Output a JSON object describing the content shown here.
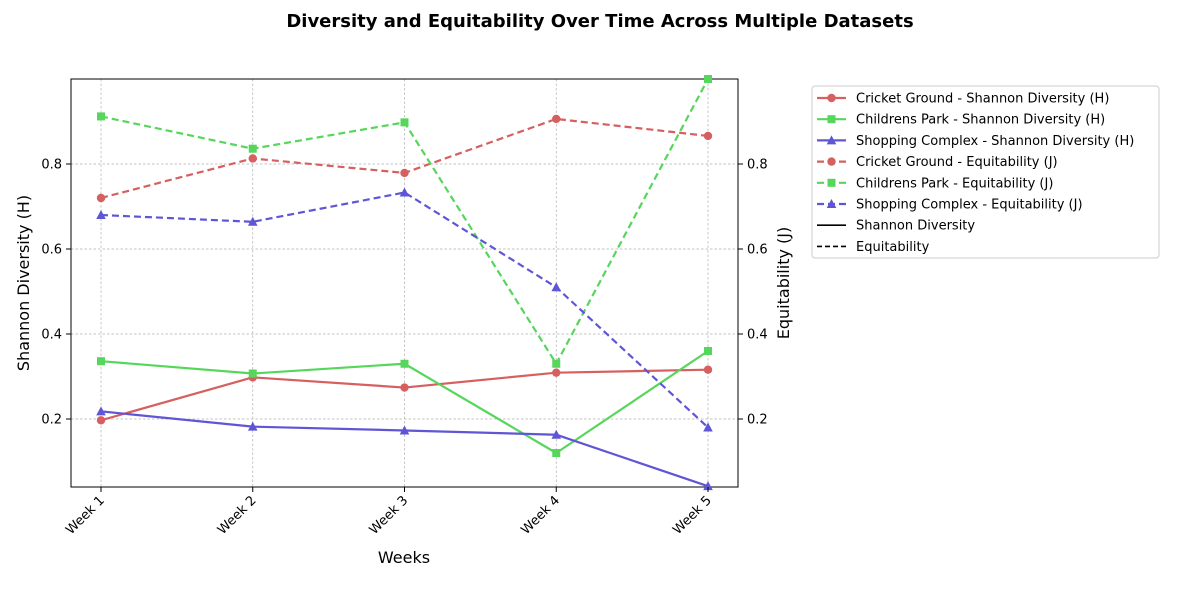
{
  "chart_data": {
    "type": "line",
    "title": "Diversity and Equitability Over Time Across Multiple Datasets",
    "xlabel": "Weeks",
    "ylabel_left": "Shannon Diversity (H)",
    "ylabel_right": "Equitability (J)",
    "categories": [
      "Week 1",
      "Week 2",
      "Week 3",
      "Week 4",
      "Week 5"
    ],
    "ylim_left": [
      0.04,
      1.0
    ],
    "ylim_right": [
      0.04,
      1.0
    ],
    "yticks_left": [
      "0.2",
      "0.4",
      "0.6",
      "0.8"
    ],
    "yticks_right": [
      "0.2",
      "0.4",
      "0.6",
      "0.8"
    ],
    "grid": true,
    "legend_placement": "outside-upper-right",
    "series": [
      {
        "name": "Cricket Ground - Shannon Diversity (H)",
        "axis": "left",
        "color": "#d65f5f",
        "marker": "circle",
        "dash": "solid",
        "values": [
          0.197,
          0.298,
          0.274,
          0.309,
          0.316
        ]
      },
      {
        "name": "Childrens Park - Shannon Diversity (H)",
        "axis": "left",
        "color": "#56d65b",
        "marker": "square",
        "dash": "solid",
        "values": [
          0.336,
          0.307,
          0.33,
          0.12,
          0.36
        ]
      },
      {
        "name": "Shopping Complex - Shannon Diversity (H)",
        "axis": "left",
        "color": "#5f56d6",
        "marker": "triangle",
        "dash": "solid",
        "values": [
          0.218,
          0.182,
          0.173,
          0.163,
          0.042
        ]
      },
      {
        "name": "Cricket Ground - Equitability (J)",
        "axis": "right",
        "color": "#d65f5f",
        "marker": "circle",
        "dash": "dashed",
        "values": [
          0.72,
          0.813,
          0.779,
          0.906,
          0.866
        ]
      },
      {
        "name": "Childrens Park - Equitability (J)",
        "axis": "right",
        "color": "#56d65b",
        "marker": "square",
        "dash": "dashed",
        "values": [
          0.912,
          0.836,
          0.898,
          0.33,
          1.0
        ]
      },
      {
        "name": "Shopping Complex - Equitability (J)",
        "axis": "right",
        "color": "#5f56d6",
        "marker": "triangle",
        "dash": "dashed",
        "values": [
          0.68,
          0.664,
          0.733,
          0.51,
          0.18
        ]
      }
    ],
    "legend_extra": [
      {
        "name": "Shannon Diversity",
        "color": "#000000",
        "dash": "solid"
      },
      {
        "name": "Equitability",
        "color": "#000000",
        "dash": "dashed"
      }
    ]
  }
}
